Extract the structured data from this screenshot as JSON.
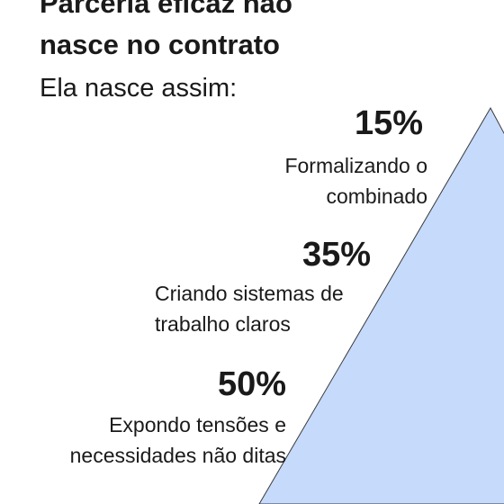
{
  "header": {
    "title": [
      "Parceria eficaz não",
      "nasce no contrato"
    ],
    "subtitle": "Ela nasce assim:"
  },
  "items": [
    {
      "percent": "15%",
      "lines": [
        "Formalizando o",
        "combinado"
      ]
    },
    {
      "percent": "35%",
      "lines": [
        "Criando sistemas de",
        "trabalho claros"
      ]
    },
    {
      "percent": "50%",
      "lines": [
        "Expondo tensões e",
        "necessidades não ditas"
      ]
    }
  ]
}
